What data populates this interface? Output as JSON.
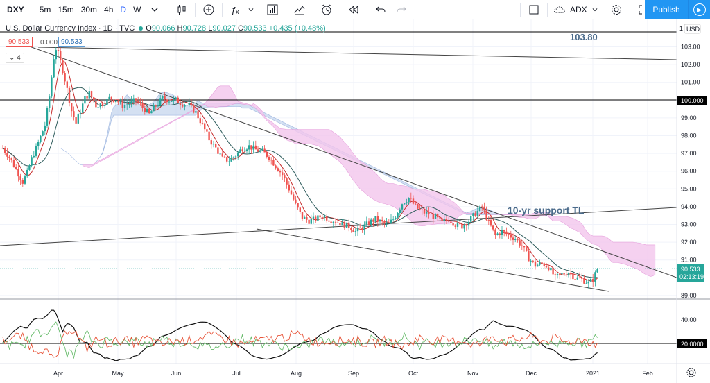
{
  "toolbar": {
    "symbol": "DXY",
    "timeframes": [
      "5m",
      "15m",
      "30m",
      "4h",
      "D",
      "W"
    ],
    "active_timeframe": "D",
    "indicator_label": "ADX",
    "publish_label": "Publish",
    "icons": [
      "candles-icon",
      "add-compare-icon",
      "indicators-fx-icon",
      "templates-icon",
      "chart-properties-icon",
      "alert-icon",
      "replay-icon",
      "undo-icon",
      "redo-icon",
      "layout-square-icon",
      "cloud-icon",
      "gear-icon",
      "fullscreen-icon",
      "camera-icon",
      "play-icon"
    ]
  },
  "legend": {
    "name": "U.S. Dollar Currency Index · 1D · TVC",
    "o_label": "O",
    "o": "90.066",
    "h_label": "H",
    "h": "90.728",
    "l_label": "L",
    "l": "90.027",
    "c_label": "C",
    "c": "90.533",
    "change": "+0.435 (+0.48%)",
    "tag_red": "90.533",
    "tag_zero": "0.000",
    "tag_blue": "90.533",
    "tag_four": "4"
  },
  "axis": {
    "currency": "USD",
    "price_ticks": [
      "103.00",
      "102.00",
      "101.00",
      "100.00",
      "99.00",
      "98.00",
      "97.00",
      "96.00",
      "95.00",
      "94.00",
      "93.00",
      "92.00",
      "91.00",
      "89.00"
    ],
    "top_tick": "1",
    "current_price": "90.533",
    "countdown": "02:13:19",
    "level_100": "100.000",
    "adx_ticks": [
      "40.00"
    ],
    "adx_level": "20.0000",
    "months": [
      "Apr",
      "May",
      "Jun",
      "Jul",
      "Aug",
      "Sep",
      "Oct",
      "Nov",
      "Dec",
      "2021",
      "Feb"
    ]
  },
  "annotations": {
    "level_103": "103.80",
    "support_label": "10-yr support TL"
  },
  "colors": {
    "up": "#26a69a",
    "down": "#ef5350",
    "accent": "#2196f3",
    "cloud_bull": "#c5d6ee",
    "cloud_bear": "#f3c6ec"
  },
  "chart_data": {
    "type": "candlestick",
    "symbol": "DXY",
    "interval": "1D",
    "ylim": [
      89,
      104
    ],
    "x_labels": [
      "Apr",
      "May",
      "Jun",
      "Jul",
      "Aug",
      "Sep",
      "Oct",
      "Nov",
      "Dec",
      "2021",
      "Feb"
    ],
    "price_path": [
      [
        0,
        97.3
      ],
      [
        3,
        96.8
      ],
      [
        6,
        96.1
      ],
      [
        9,
        95.4
      ],
      [
        11,
        95.9
      ],
      [
        13,
        96.7
      ],
      [
        16,
        97.6
      ],
      [
        19,
        98.6
      ],
      [
        21,
        100.2
      ],
      [
        22,
        101.3
      ],
      [
        23,
        102.4
      ],
      [
        24,
        102.9
      ],
      [
        25,
        102.6
      ],
      [
        27,
        101.7
      ],
      [
        29,
        100.6
      ],
      [
        31,
        99.4
      ],
      [
        33,
        98.7
      ],
      [
        35,
        99.4
      ],
      [
        37,
        100.1
      ],
      [
        39,
        100.4
      ],
      [
        42,
        99.7
      ],
      [
        45,
        99.8
      ],
      [
        48,
        100.1
      ],
      [
        51,
        100.0
      ],
      [
        54,
        99.7
      ],
      [
        57,
        99.8
      ],
      [
        60,
        100.0
      ],
      [
        63,
        99.6
      ],
      [
        66,
        99.2
      ],
      [
        69,
        99.7
      ],
      [
        72,
        100.1
      ],
      [
        75,
        100.0
      ],
      [
        78,
        100.0
      ],
      [
        81,
        99.8
      ],
      [
        84,
        99.7
      ],
      [
        87,
        99.3
      ],
      [
        90,
        98.6
      ],
      [
        93,
        97.8
      ],
      [
        96,
        97.3
      ],
      [
        99,
        96.7
      ],
      [
        102,
        96.6
      ],
      [
        105,
        96.9
      ],
      [
        108,
        97.3
      ],
      [
        111,
        97.4
      ],
      [
        114,
        97.2
      ],
      [
        117,
        97.1
      ],
      [
        120,
        96.8
      ],
      [
        123,
        96.3
      ],
      [
        126,
        95.8
      ],
      [
        129,
        95.0
      ],
      [
        132,
        94.1
      ],
      [
        135,
        93.4
      ],
      [
        138,
        93.2
      ],
      [
        141,
        93.3
      ],
      [
        144,
        93.5
      ],
      [
        147,
        93.3
      ],
      [
        150,
        93.2
      ],
      [
        153,
        93.0
      ],
      [
        156,
        92.9
      ],
      [
        159,
        92.6
      ],
      [
        162,
        92.8
      ],
      [
        165,
        93.1
      ],
      [
        168,
        93.3
      ],
      [
        171,
        93.1
      ],
      [
        174,
        93.0
      ],
      [
        177,
        93.5
      ],
      [
        180,
        94.2
      ],
      [
        183,
        94.5
      ],
      [
        186,
        94.0
      ],
      [
        189,
        93.7
      ],
      [
        192,
        93.6
      ],
      [
        195,
        93.4
      ],
      [
        198,
        93.1
      ],
      [
        201,
        93.3
      ],
      [
        204,
        93.0
      ],
      [
        207,
        92.9
      ],
      [
        210,
        93.2
      ],
      [
        213,
        93.6
      ],
      [
        216,
        94.0
      ],
      [
        219,
        93.1
      ],
      [
        222,
        92.4
      ],
      [
        225,
        92.6
      ],
      [
        228,
        92.4
      ],
      [
        231,
        92.2
      ],
      [
        234,
        91.8
      ],
      [
        237,
        91.1
      ],
      [
        240,
        90.7
      ],
      [
        243,
        90.8
      ],
      [
        246,
        90.6
      ],
      [
        249,
        90.0
      ],
      [
        252,
        90.2
      ],
      [
        255,
        90.3
      ],
      [
        258,
        90.0
      ],
      [
        261,
        89.9
      ],
      [
        264,
        89.7
      ],
      [
        266,
        89.9
      ],
      [
        268,
        90.5
      ]
    ],
    "indicator": {
      "name": "ADX",
      "levels": [
        20,
        40
      ]
    },
    "annotations": [
      {
        "type": "horizontal-line",
        "price": 103.8,
        "label": "103.80"
      },
      {
        "type": "horizontal-line",
        "price": 100.0,
        "label": "100.000"
      },
      {
        "type": "trend-line",
        "label": "10-yr support TL"
      }
    ],
    "last_price": 90.533
  }
}
